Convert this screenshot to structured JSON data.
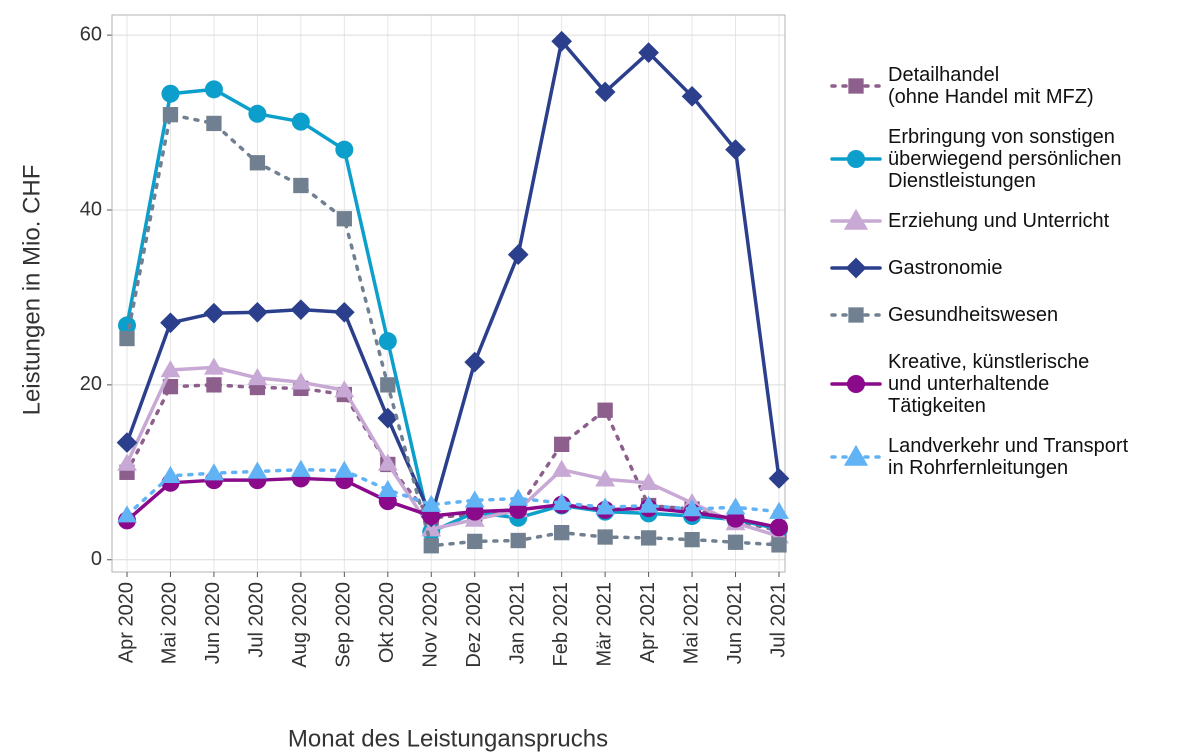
{
  "chart_data": {
    "type": "line",
    "x_label": "Monat des Leistunganspruchs",
    "y_label": "Leistungen in Mio. CHF",
    "categories": [
      "Apr 2020",
      "Mai 2020",
      "Jun 2020",
      "Jul 2020",
      "Aug 2020",
      "Sep 2020",
      "Okt 2020",
      "Nov 2020",
      "Dez 2020",
      "Jan 2021",
      "Feb 2021",
      "Mär 2021",
      "Apr 2021",
      "Mai 2021",
      "Jun 2021",
      "Jul 2021"
    ],
    "ylim": [
      -1.4,
      62.3
    ],
    "yticks": [
      0,
      20,
      40,
      60
    ],
    "grid": true,
    "legend": "right",
    "series": [
      {
        "name": "Detailhandel\n(ohne Handel mit MFZ)",
        "color": "#8c5f8c",
        "dash": "dotted",
        "marker": "square",
        "values": [
          10,
          19.8,
          20,
          19.7,
          19.6,
          18.9,
          10.9,
          4.8,
          5.2,
          5.8,
          13.2,
          17.1,
          6.2,
          5.8,
          4.5,
          3.3
        ]
      },
      {
        "name": "Erbringung von sonstigen\nüberwiegend persönlichen\nDienstleistungen",
        "color": "#0d9fcb",
        "dash": "solid",
        "marker": "circle",
        "values": [
          26.8,
          53.3,
          53.8,
          51,
          50.1,
          46.9,
          25,
          3.2,
          5.4,
          4.8,
          6.2,
          5.5,
          5.3,
          5,
          4.6,
          3.5
        ]
      },
      {
        "name": "Erziehung und Unterricht",
        "color": "#c8a8d4",
        "dash": "solid",
        "marker": "triangle",
        "values": [
          11,
          21.7,
          22,
          20.8,
          20.3,
          19.4,
          11,
          3.5,
          4.6,
          5.7,
          10.3,
          9.2,
          8.8,
          6.5,
          4.2,
          2.7
        ]
      },
      {
        "name": "Gastronomie",
        "color": "#2b3f8c",
        "dash": "solid",
        "marker": "diamond",
        "values": [
          13.4,
          27.1,
          28.2,
          28.3,
          28.6,
          28.3,
          16.2,
          4.9,
          22.6,
          34.9,
          59.3,
          53.5,
          58,
          53,
          46.9,
          9.3
        ]
      },
      {
        "name": "Gesundheitswesen",
        "color": "#708090",
        "dash": "dotted",
        "marker": "square",
        "values": [
          25.3,
          50.9,
          49.9,
          45.4,
          42.8,
          39,
          20,
          1.6,
          2.1,
          2.2,
          3.1,
          2.6,
          2.5,
          2.3,
          2,
          1.7
        ]
      },
      {
        "name": "Kreative, künstlerische\nund unterhaltende\nTätigkeiten",
        "color": "#8b0a8b",
        "dash": "solid",
        "marker": "circle",
        "values": [
          4.5,
          8.8,
          9.1,
          9.1,
          9.3,
          9.1,
          6.7,
          5,
          5.5,
          5.7,
          6.3,
          5.7,
          5.9,
          5.4,
          4.7,
          3.7
        ]
      },
      {
        "name": "Landverkehr und Transport\nin Rohrfernleitungen",
        "color": "#62b3f5",
        "dash": "dotted",
        "marker": "triangle",
        "values": [
          5.1,
          9.6,
          9.9,
          10.1,
          10.3,
          10.2,
          8,
          6.3,
          6.8,
          7,
          6.5,
          6,
          6.2,
          5.8,
          6,
          5.5
        ]
      }
    ]
  }
}
